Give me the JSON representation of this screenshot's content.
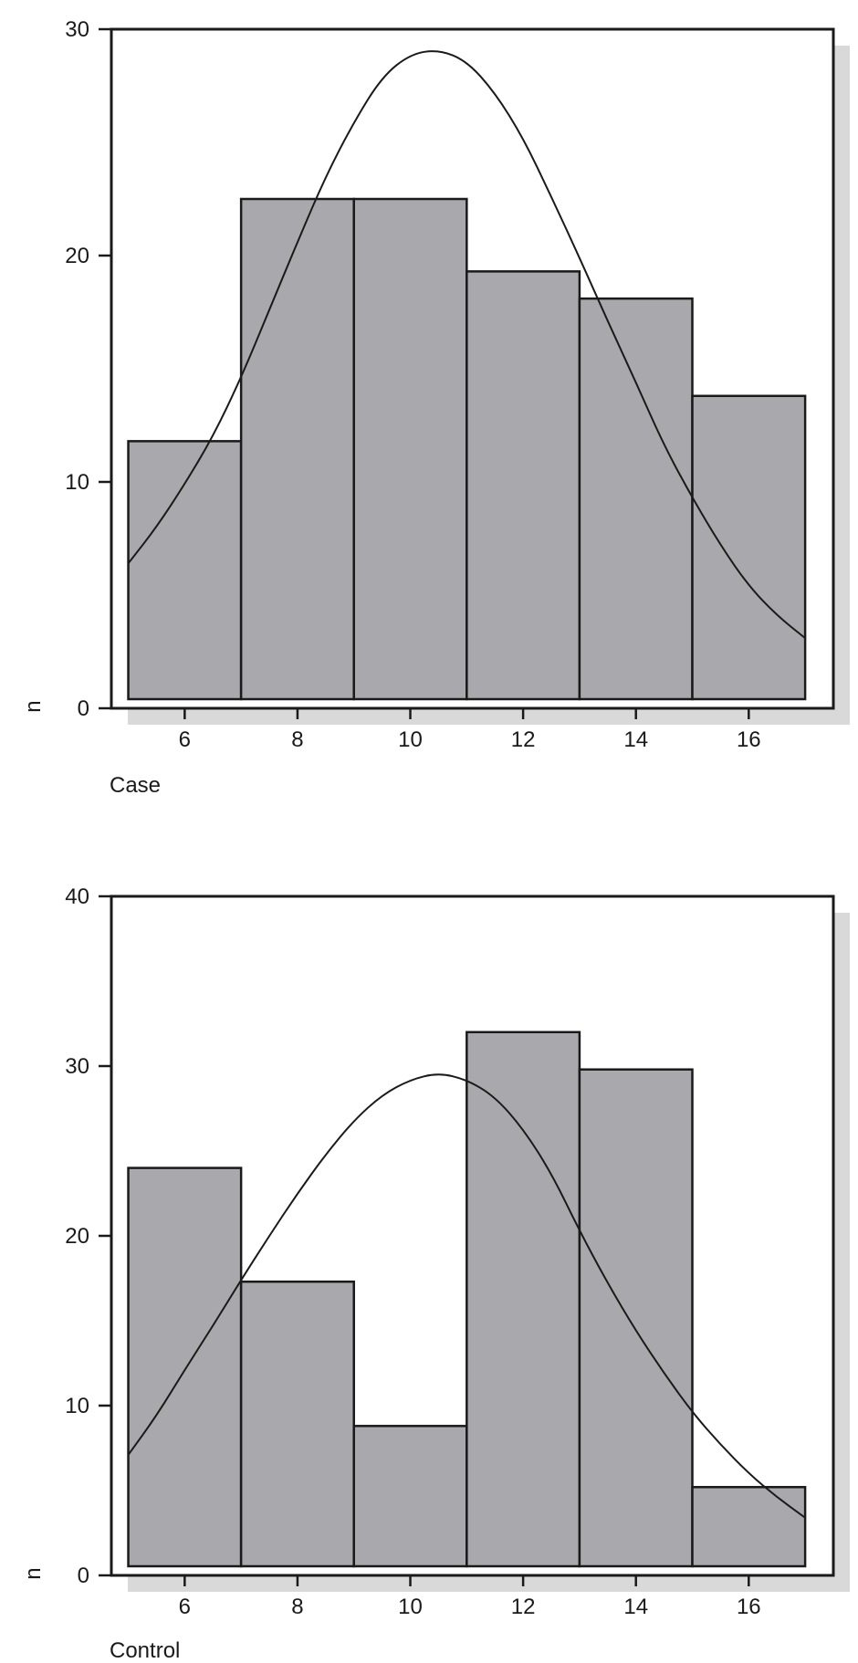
{
  "chart_data": [
    {
      "type": "bar",
      "panel_label": "Case",
      "ylabel": "n",
      "xlabel": "",
      "bin_edges": [
        5,
        7,
        9,
        11,
        13,
        15,
        17
      ],
      "values": [
        11.8,
        22.5,
        22.5,
        19.3,
        18.1,
        13.8
      ],
      "xlim": [
        4.7,
        17.5
      ],
      "ylim": [
        0,
        30
      ],
      "xticks": [
        "6",
        "8",
        "10",
        "12",
        "14",
        "16"
      ],
      "yticks": [
        "0",
        "10",
        "20",
        "30"
      ],
      "curve": {
        "x": [
          5,
          5.5,
          6,
          6.5,
          7,
          7.5,
          8,
          8.5,
          9,
          9.5,
          10,
          10.5,
          11,
          11.5,
          12,
          12.5,
          13,
          13.5,
          14,
          14.5,
          15,
          15.5,
          16,
          16.5,
          17
        ],
        "y": [
          6.4,
          8.0,
          9.9,
          12.0,
          14.6,
          17.6,
          20.6,
          23.5,
          25.9,
          27.9,
          28.9,
          29.1,
          28.6,
          27.2,
          25.2,
          22.6,
          19.9,
          17.1,
          14.4,
          11.6,
          9.3,
          7.2,
          5.4,
          4.1,
          3.1
        ]
      },
      "colors": {
        "bar_fill": "#a9a9ad",
        "bar_stroke": "#1a1a1a",
        "shadow": "#d9d9d9",
        "curve": "#1a1a1a"
      },
      "grid": false
    },
    {
      "type": "bar",
      "panel_label": "Control",
      "ylabel": "n",
      "xlabel": "",
      "bin_edges": [
        5,
        7,
        9,
        11,
        13,
        15,
        17
      ],
      "values": [
        24.0,
        17.3,
        8.8,
        32.0,
        29.8,
        5.2
      ],
      "xlim": [
        4.7,
        17.5
      ],
      "ylim": [
        0,
        40
      ],
      "xticks": [
        "6",
        "8",
        "10",
        "12",
        "14",
        "16"
      ],
      "yticks": [
        "0",
        "10",
        "20",
        "30",
        "40"
      ],
      "curve": {
        "x": [
          5,
          5.5,
          6,
          6.5,
          7,
          7.5,
          8,
          8.5,
          9,
          9.5,
          10,
          10.5,
          11,
          11.5,
          12,
          12.5,
          13,
          13.5,
          14,
          14.5,
          15,
          15.5,
          16,
          16.5,
          17
        ],
        "y": [
          7.1,
          9.4,
          12.1,
          14.7,
          17.4,
          20.0,
          22.5,
          24.8,
          26.8,
          28.3,
          29.2,
          29.6,
          29.2,
          28.2,
          26.3,
          23.7,
          20.3,
          17.2,
          14.4,
          11.9,
          9.6,
          7.7,
          6.0,
          4.6,
          3.4
        ]
      },
      "colors": {
        "bar_fill": "#a9a9ad",
        "bar_stroke": "#1a1a1a",
        "shadow": "#d9d9d9",
        "curve": "#1a1a1a"
      },
      "grid": false
    }
  ]
}
